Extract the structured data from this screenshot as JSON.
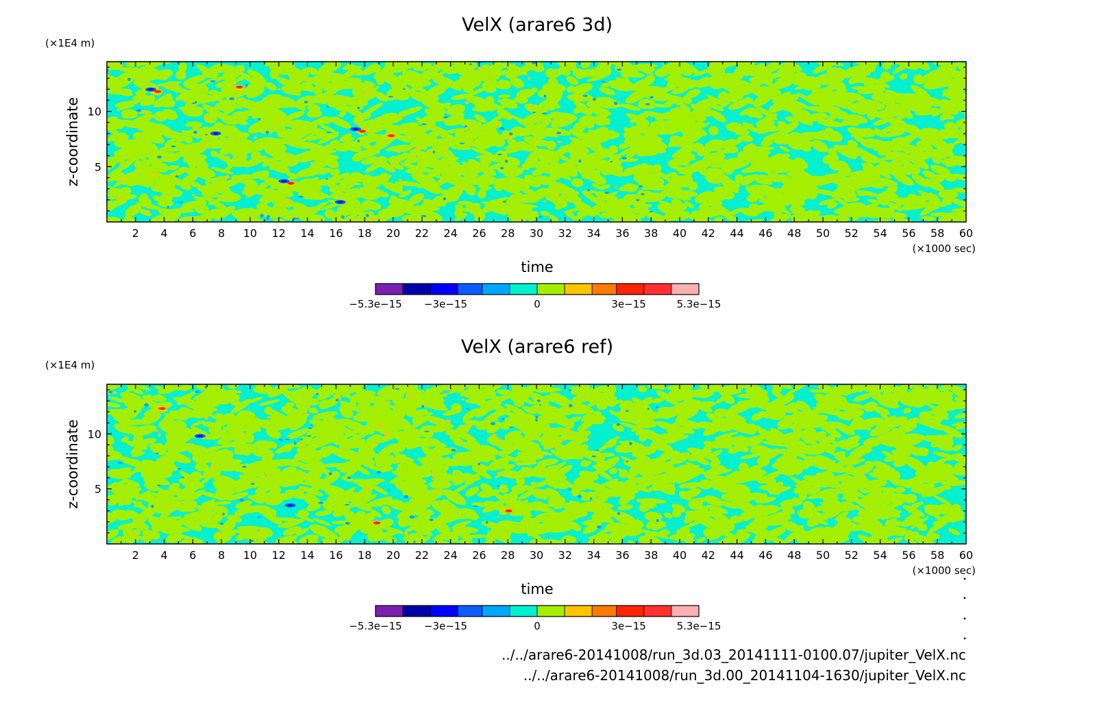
{
  "chart_data": [
    {
      "type": "heatmap",
      "title": "VelX (arare6 3d)",
      "xlabel": "time",
      "ylabel": "z-coordinate",
      "x_unit": "(×1000 sec)",
      "y_unit": "(×1E4 m)",
      "xlim": [
        0,
        60
      ],
      "ylim": [
        0,
        14.5
      ],
      "xticks": [
        2,
        4,
        6,
        8,
        10,
        12,
        14,
        16,
        18,
        20,
        22,
        24,
        26,
        28,
        30,
        32,
        34,
        36,
        38,
        40,
        42,
        44,
        46,
        48,
        50,
        52,
        54,
        56,
        58,
        60
      ],
      "yticks": [
        5,
        10
      ],
      "colorbar": {
        "levels": [
          -5.3e-15,
          -4.4e-15,
          -3.5e-15,
          -2.6e-15,
          -1.8e-15,
          -9e-16,
          0,
          9e-16,
          1.8e-15,
          2.6e-15,
          3.5e-15,
          4.4e-15,
          5.3e-15
        ],
        "tick_labels": [
          "-5.3e-15",
          "-3e-15",
          "0",
          "3e-15",
          "5.3e-15"
        ],
        "tick_values": [
          -5.3e-15,
          -3e-15,
          0,
          3e-15,
          5.3e-15
        ],
        "colors": [
          "#7a1fb0",
          "#0000a8",
          "#0000ff",
          "#0a5cff",
          "#00a6ff",
          "#00f0d0",
          "#a4ef00",
          "#ffc400",
          "#ff7a00",
          "#ff2400",
          "#ff3030",
          "#ffb0b0"
        ]
      },
      "field_note_colors": {
        "background": "#00f0d0",
        "dominant_positive": "#a4ef00"
      },
      "notable_features": [
        {
          "x": 3.5,
          "y": 11.8,
          "sign": "mixed"
        },
        {
          "x": 9.2,
          "y": 12.2,
          "sign": "positive"
        },
        {
          "x": 12.8,
          "y": 3.5,
          "sign": "mixed"
        },
        {
          "x": 16.3,
          "y": 1.8,
          "sign": "negative"
        },
        {
          "x": 17.8,
          "y": 8.2,
          "sign": "mixed"
        },
        {
          "x": 19.8,
          "y": 7.8,
          "sign": "positive"
        },
        {
          "x": 7.6,
          "y": 8.0,
          "sign": "negative"
        }
      ],
      "seed": 11
    },
    {
      "type": "heatmap",
      "title": "VelX (arare6 ref)",
      "xlabel": "time",
      "ylabel": "z-coordinate",
      "x_unit": "(×1000 sec)",
      "y_unit": "(×1E4 m)",
      "xlim": [
        0,
        60
      ],
      "ylim": [
        0,
        14.5
      ],
      "xticks": [
        2,
        4,
        6,
        8,
        10,
        12,
        14,
        16,
        18,
        20,
        22,
        24,
        26,
        28,
        30,
        32,
        34,
        36,
        38,
        40,
        42,
        44,
        46,
        48,
        50,
        52,
        54,
        56,
        58,
        60
      ],
      "yticks": [
        5,
        10
      ],
      "colorbar": {
        "levels": [
          -5.3e-15,
          -4.4e-15,
          -3.5e-15,
          -2.6e-15,
          -1.8e-15,
          -9e-16,
          0,
          9e-16,
          1.8e-15,
          2.6e-15,
          3.5e-15,
          4.4e-15,
          5.3e-15
        ],
        "tick_labels": [
          "-5.3e-15",
          "-3e-15",
          "0",
          "3e-15",
          "5.3e-15"
        ],
        "tick_values": [
          -5.3e-15,
          -3e-15,
          0,
          3e-15,
          5.3e-15
        ],
        "colors": [
          "#7a1fb0",
          "#0000a8",
          "#0000ff",
          "#0a5cff",
          "#00a6ff",
          "#00f0d0",
          "#a4ef00",
          "#ffc400",
          "#ff7a00",
          "#ff2400",
          "#ff3030",
          "#ffb0b0"
        ]
      },
      "field_note_colors": {
        "background": "#00f0d0",
        "dominant_positive": "#a4ef00"
      },
      "notable_features": [
        {
          "x": 3.8,
          "y": 12.3,
          "sign": "positive"
        },
        {
          "x": 12.8,
          "y": 3.5,
          "sign": "negative"
        },
        {
          "x": 18.8,
          "y": 1.9,
          "sign": "positive"
        },
        {
          "x": 6.5,
          "y": 9.8,
          "sign": "negative"
        },
        {
          "x": 28.0,
          "y": 3.0,
          "sign": "positive"
        }
      ],
      "seed": 29
    }
  ],
  "footer": {
    "path_lines": [
      "../../arare6-20141008/run_3d.03_20141111-0100.07/jupiter_VelX.nc",
      "../../arare6-20141008/run_3d.00_20141104-1630/jupiter_VelX.nc"
    ]
  }
}
